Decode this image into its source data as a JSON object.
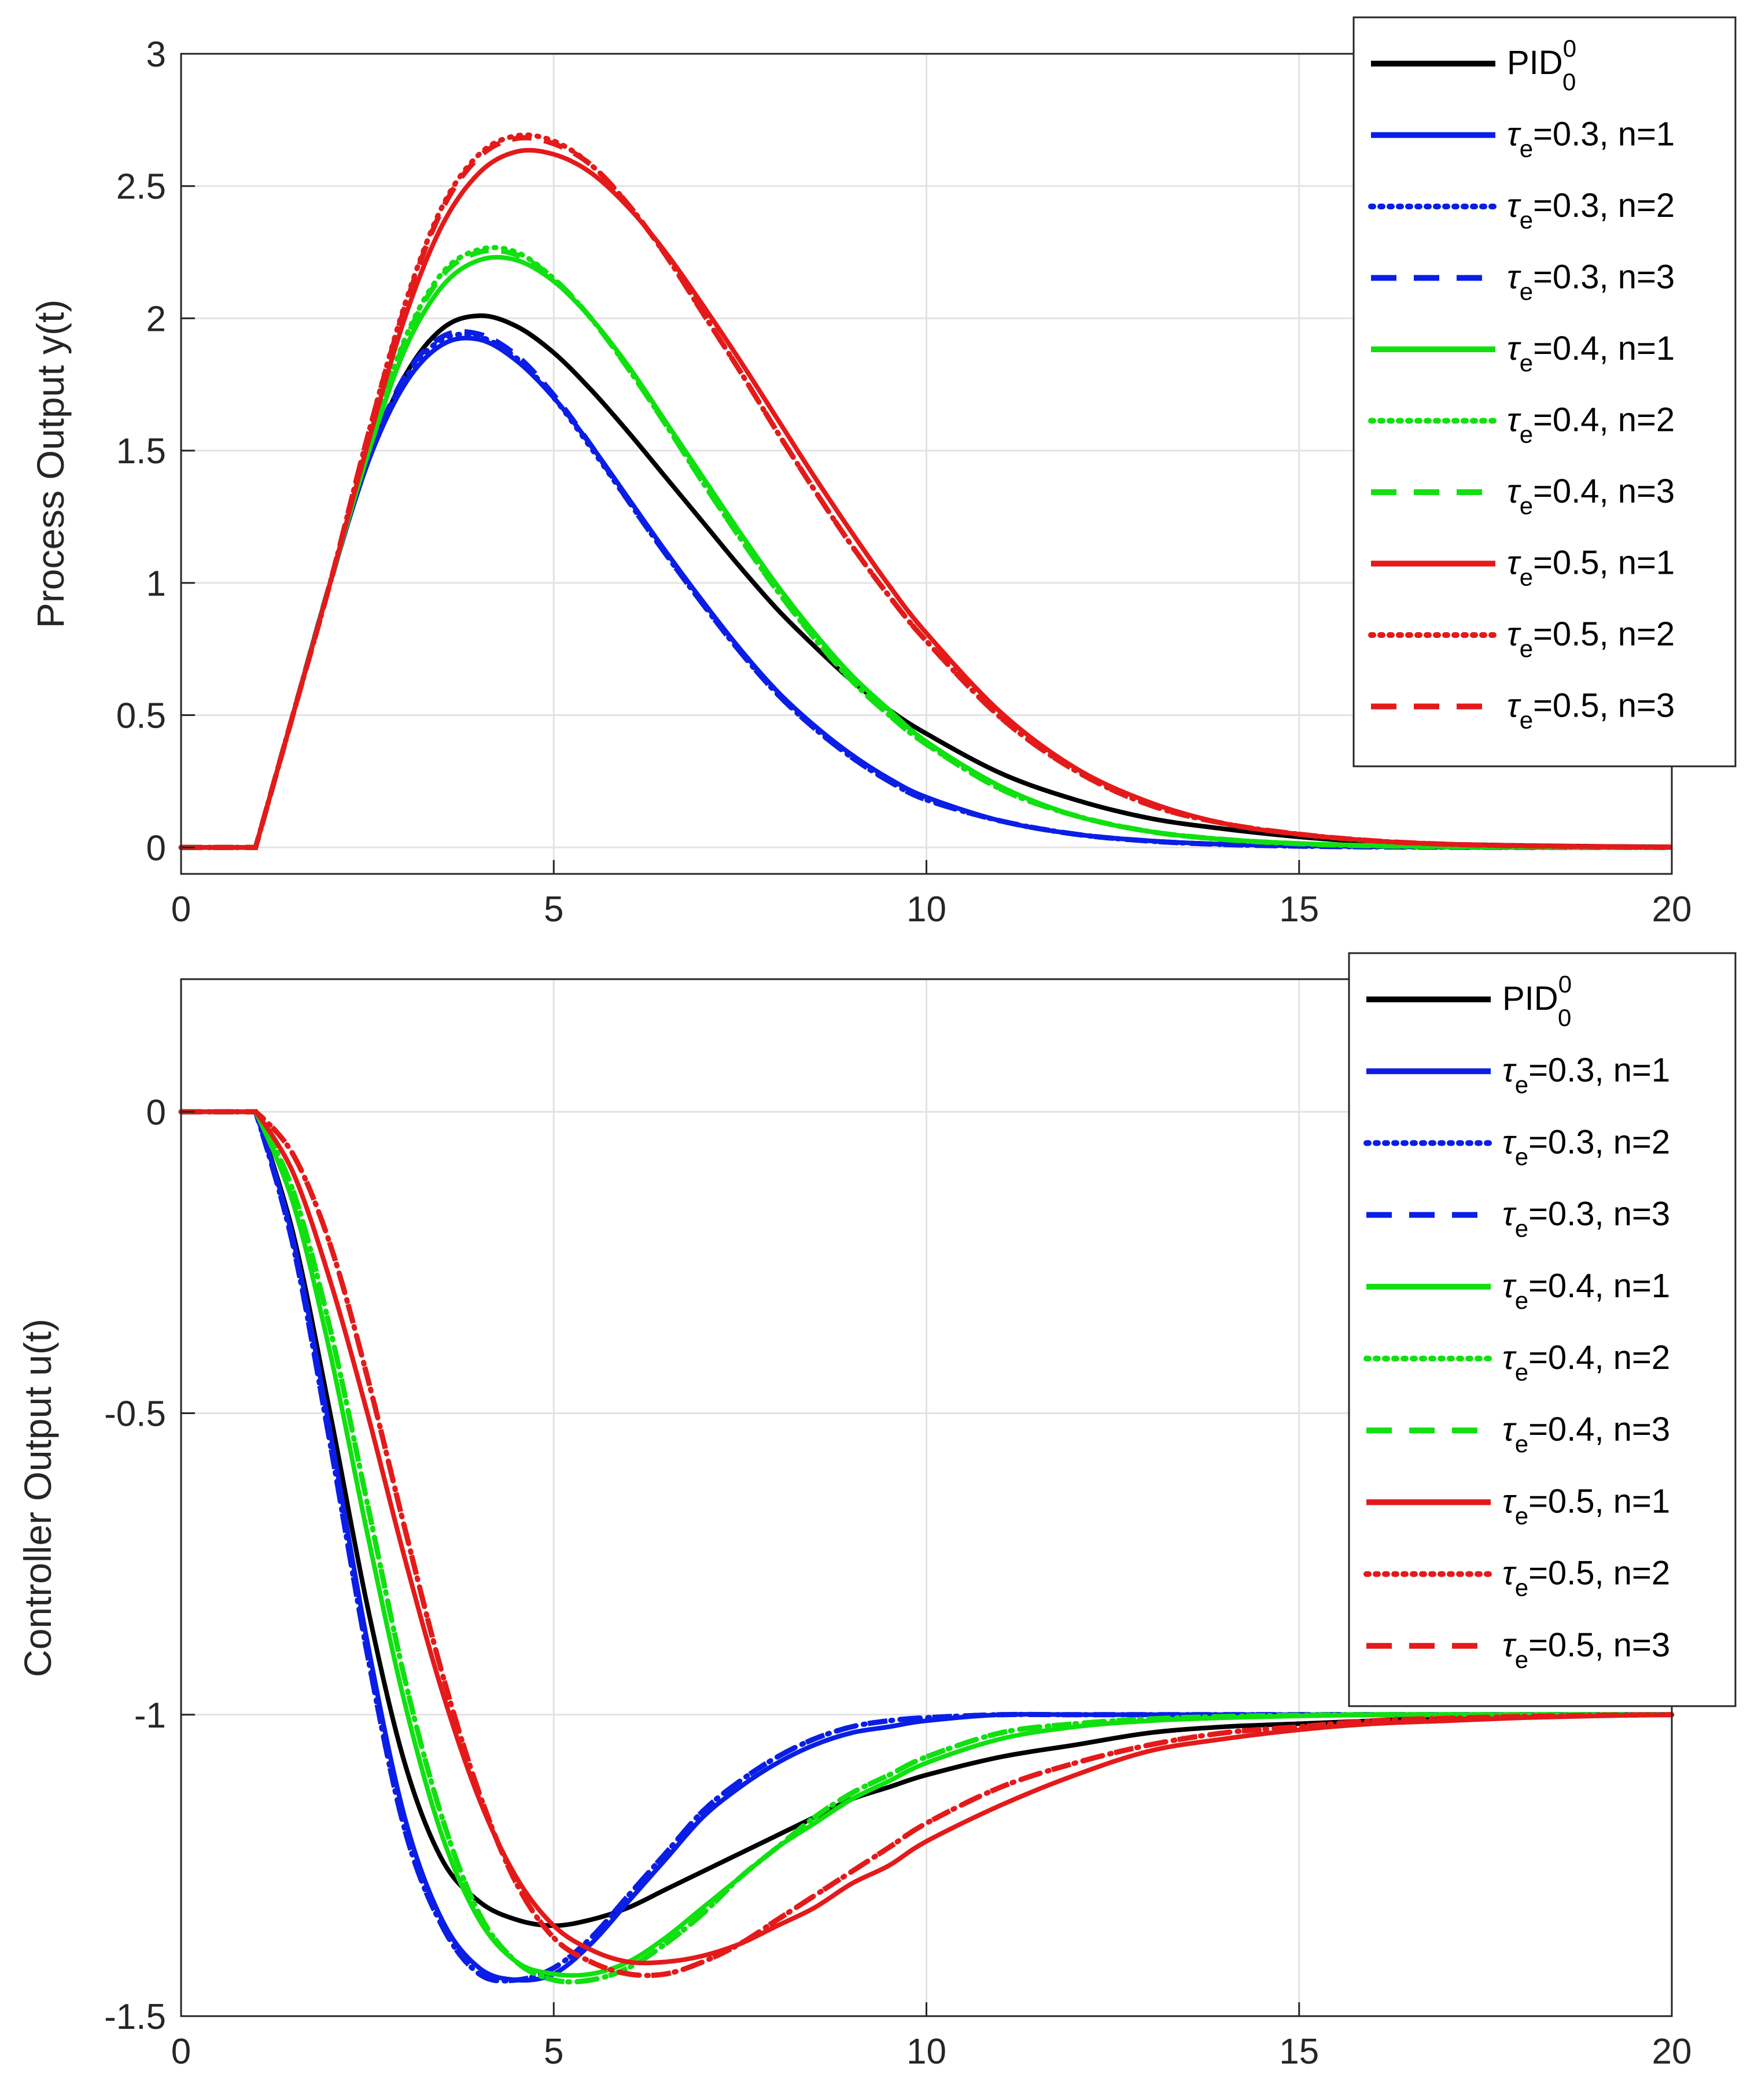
{
  "colors": {
    "pid": "#000000",
    "tau03": "#0a1ee6",
    "tau04": "#10e010",
    "tau05": "#e41a1a",
    "grid": "#e3e3e3",
    "axis": "#262626"
  },
  "legend": {
    "items": [
      {
        "main": "PID",
        "sup": "0",
        "sub": "0",
        "prefix": "",
        "suffix": "",
        "color": "#000000",
        "style": "solid"
      },
      {
        "main": "",
        "prefix": "τ",
        "sub": "e",
        "suffix": "=0.3, n=1",
        "color": "#0a1ee6",
        "style": "solid"
      },
      {
        "main": "",
        "prefix": "τ",
        "sub": "e",
        "suffix": "=0.3, n=2",
        "color": "#0a1ee6",
        "style": "dotted"
      },
      {
        "main": "",
        "prefix": "τ",
        "sub": "e",
        "suffix": "=0.3, n=3",
        "color": "#0a1ee6",
        "style": "dashed"
      },
      {
        "main": "",
        "prefix": "τ",
        "sub": "e",
        "suffix": "=0.4, n=1",
        "color": "#10e010",
        "style": "solid"
      },
      {
        "main": "",
        "prefix": "τ",
        "sub": "e",
        "suffix": "=0.4, n=2",
        "color": "#10e010",
        "style": "dotted"
      },
      {
        "main": "",
        "prefix": "τ",
        "sub": "e",
        "suffix": "=0.4, n=3",
        "color": "#10e010",
        "style": "dashed"
      },
      {
        "main": "",
        "prefix": "τ",
        "sub": "e",
        "suffix": "=0.5, n=1",
        "color": "#e41a1a",
        "style": "solid"
      },
      {
        "main": "",
        "prefix": "τ",
        "sub": "e",
        "suffix": "=0.5, n=2",
        "color": "#e41a1a",
        "style": "dotted"
      },
      {
        "main": "",
        "prefix": "τ",
        "sub": "e",
        "suffix": "=0.5, n=3",
        "color": "#e41a1a",
        "style": "dashed"
      }
    ]
  },
  "chart_data": [
    {
      "type": "line",
      "title": "",
      "xlabel": "",
      "ylabel": "Process Output y(t)",
      "xlim": [
        0,
        20
      ],
      "ylim": [
        -0.1,
        3
      ],
      "xticks": [
        0,
        5,
        10,
        15,
        20
      ],
      "xtick_labels": [
        "0",
        "5",
        "10",
        "15",
        "20"
      ],
      "yticks": [
        0,
        0.5,
        1,
        1.5,
        2,
        2.5,
        3
      ],
      "ytick_labels": [
        "0",
        "0.5",
        "1",
        "1.5",
        "2",
        "2.5",
        "3"
      ],
      "grid": true,
      "legend_position": "top-right",
      "x": [
        0,
        1,
        1.5,
        2,
        2.5,
        3,
        3.5,
        4,
        4.5,
        5,
        5.5,
        6,
        6.5,
        7,
        7.5,
        8,
        8.5,
        9,
        9.5,
        10,
        11,
        12,
        13,
        14,
        15,
        16,
        17,
        18,
        19,
        20
      ],
      "series": [
        {
          "name": "PID_0^0",
          "color": "#000000",
          "style": "solid",
          "values": [
            0,
            0,
            0.5,
            1.0,
            1.45,
            1.78,
            1.96,
            2.01,
            1.97,
            1.87,
            1.73,
            1.57,
            1.4,
            1.23,
            1.06,
            0.9,
            0.76,
            0.63,
            0.52,
            0.43,
            0.28,
            0.18,
            0.11,
            0.07,
            0.04,
            0.02,
            0.012,
            0.007,
            0.004,
            0.002
          ]
        },
        {
          "name": "τe=0.3, n=1",
          "color": "#0a1ee6",
          "style": "solid",
          "values": [
            0,
            0,
            0.5,
            1.0,
            1.45,
            1.75,
            1.9,
            1.92,
            1.84,
            1.7,
            1.52,
            1.32,
            1.12,
            0.93,
            0.75,
            0.59,
            0.46,
            0.35,
            0.26,
            0.19,
            0.1,
            0.05,
            0.025,
            0.012,
            0.006,
            0.003,
            0.001,
            0.0,
            0.0,
            0.0
          ]
        },
        {
          "name": "τe=0.3, n=2",
          "color": "#0a1ee6",
          "style": "dotted",
          "values": [
            0,
            0,
            0.5,
            1.0,
            1.46,
            1.77,
            1.92,
            1.93,
            1.85,
            1.7,
            1.51,
            1.31,
            1.11,
            0.92,
            0.74,
            0.58,
            0.45,
            0.34,
            0.25,
            0.18,
            0.1,
            0.05,
            0.024,
            0.011,
            0.005,
            0.002,
            0.001,
            0.0,
            0.0,
            0.0
          ]
        },
        {
          "name": "τe=0.3, n=3",
          "color": "#0a1ee6",
          "style": "dashed",
          "values": [
            0,
            0,
            0.5,
            1.0,
            1.46,
            1.78,
            1.93,
            1.94,
            1.86,
            1.71,
            1.52,
            1.31,
            1.11,
            0.92,
            0.74,
            0.58,
            0.45,
            0.34,
            0.25,
            0.18,
            0.1,
            0.05,
            0.024,
            0.011,
            0.005,
            0.002,
            0.001,
            0.0,
            0.0,
            0.0
          ]
        },
        {
          "name": "τe=0.4, n=1",
          "color": "#10e010",
          "style": "solid",
          "values": [
            0,
            0,
            0.5,
            1.0,
            1.48,
            1.88,
            2.12,
            2.22,
            2.22,
            2.14,
            2.0,
            1.82,
            1.61,
            1.4,
            1.19,
            0.99,
            0.81,
            0.65,
            0.52,
            0.4,
            0.23,
            0.12,
            0.06,
            0.03,
            0.015,
            0.007,
            0.003,
            0.001,
            0.0,
            0.0
          ]
        },
        {
          "name": "τe=0.4, n=2",
          "color": "#10e010",
          "style": "dotted",
          "values": [
            0,
            0,
            0.5,
            1.0,
            1.5,
            1.92,
            2.17,
            2.26,
            2.25,
            2.15,
            2.0,
            1.81,
            1.6,
            1.38,
            1.17,
            0.97,
            0.79,
            0.63,
            0.5,
            0.39,
            0.22,
            0.12,
            0.06,
            0.03,
            0.014,
            0.006,
            0.003,
            0.001,
            0.0,
            0.0
          ]
        },
        {
          "name": "τe=0.4, n=3",
          "color": "#10e010",
          "style": "dashed",
          "values": [
            0,
            0,
            0.5,
            1.0,
            1.5,
            1.91,
            2.16,
            2.25,
            2.24,
            2.15,
            2.0,
            1.81,
            1.6,
            1.38,
            1.17,
            0.97,
            0.79,
            0.63,
            0.5,
            0.39,
            0.22,
            0.12,
            0.06,
            0.03,
            0.014,
            0.006,
            0.003,
            0.001,
            0.0,
            0.0
          ]
        },
        {
          "name": "τe=0.5, n=1",
          "color": "#e41a1a",
          "style": "solid",
          "values": [
            0,
            0,
            0.5,
            1.0,
            1.52,
            2.0,
            2.35,
            2.55,
            2.63,
            2.62,
            2.55,
            2.42,
            2.25,
            2.05,
            1.84,
            1.62,
            1.4,
            1.19,
            0.99,
            0.81,
            0.51,
            0.3,
            0.17,
            0.09,
            0.05,
            0.025,
            0.012,
            0.006,
            0.003,
            0.001
          ]
        },
        {
          "name": "τe=0.5, n=2",
          "color": "#e41a1a",
          "style": "dotted",
          "values": [
            0,
            0,
            0.5,
            1.0,
            1.55,
            2.05,
            2.42,
            2.62,
            2.69,
            2.67,
            2.58,
            2.43,
            2.24,
            2.02,
            1.8,
            1.57,
            1.35,
            1.14,
            0.95,
            0.78,
            0.49,
            0.29,
            0.16,
            0.09,
            0.05,
            0.025,
            0.012,
            0.006,
            0.003,
            0.001
          ]
        },
        {
          "name": "τe=0.5, n=3",
          "color": "#e41a1a",
          "style": "dashed",
          "values": [
            0,
            0,
            0.5,
            1.0,
            1.55,
            2.04,
            2.41,
            2.61,
            2.68,
            2.66,
            2.58,
            2.43,
            2.24,
            2.02,
            1.8,
            1.57,
            1.35,
            1.14,
            0.95,
            0.78,
            0.49,
            0.29,
            0.16,
            0.09,
            0.05,
            0.025,
            0.012,
            0.006,
            0.003,
            0.001
          ]
        }
      ]
    },
    {
      "type": "line",
      "title": "",
      "xlabel": "",
      "ylabel": "Controller Output u(t)",
      "xlim": [
        0,
        20
      ],
      "ylim": [
        -1.5,
        0.22
      ],
      "xticks": [
        0,
        5,
        10,
        15,
        20
      ],
      "xtick_labels": [
        "0",
        "5",
        "10",
        "15",
        "20"
      ],
      "yticks": [
        -1.5,
        -1,
        -0.5,
        0
      ],
      "ytick_labels": [
        "-1.5",
        "-1",
        "-0.5",
        "0"
      ],
      "grid": true,
      "legend_position": "top-right",
      "x": [
        0,
        1,
        1.5,
        2,
        2.5,
        3,
        3.5,
        4,
        4.5,
        5,
        5.5,
        6,
        6.5,
        7,
        7.5,
        8,
        8.5,
        9,
        9.5,
        10,
        11,
        12,
        13,
        14,
        15,
        16,
        17,
        18,
        19,
        20
      ],
      "series": [
        {
          "name": "PID_0^0",
          "color": "#000000",
          "style": "solid",
          "values": [
            0,
            0,
            -0.2,
            -0.5,
            -0.82,
            -1.08,
            -1.24,
            -1.31,
            -1.34,
            -1.35,
            -1.34,
            -1.32,
            -1.29,
            -1.26,
            -1.23,
            -1.2,
            -1.17,
            -1.14,
            -1.12,
            -1.1,
            -1.07,
            -1.05,
            -1.03,
            -1.02,
            -1.015,
            -1.01,
            -1.005,
            -1.003,
            -1.001,
            -1.0
          ]
        },
        {
          "name": "τe=0.3, n=1",
          "color": "#0a1ee6",
          "style": "solid",
          "values": [
            0,
            0,
            -0.21,
            -0.53,
            -0.88,
            -1.17,
            -1.34,
            -1.42,
            -1.44,
            -1.43,
            -1.38,
            -1.31,
            -1.24,
            -1.17,
            -1.12,
            -1.08,
            -1.05,
            -1.03,
            -1.02,
            -1.01,
            -1.0,
            -1.0,
            -1.0,
            -1.0,
            -1.0,
            -1.0,
            -1.0,
            -1.0,
            -1.0,
            -1.0
          ]
        },
        {
          "name": "τe=0.3, n=2",
          "color": "#0a1ee6",
          "style": "dotted",
          "values": [
            0,
            0,
            -0.22,
            -0.55,
            -0.9,
            -1.19,
            -1.35,
            -1.43,
            -1.44,
            -1.42,
            -1.37,
            -1.3,
            -1.23,
            -1.16,
            -1.11,
            -1.07,
            -1.04,
            -1.02,
            -1.01,
            -1.005,
            -1.0,
            -1.0,
            -1.0,
            -1.0,
            -1.0,
            -1.0,
            -1.0,
            -1.0,
            -1.0,
            -1.0
          ]
        },
        {
          "name": "τe=0.3, n=3",
          "color": "#0a1ee6",
          "style": "dashed",
          "values": [
            0,
            0,
            -0.22,
            -0.55,
            -0.9,
            -1.19,
            -1.35,
            -1.43,
            -1.44,
            -1.42,
            -1.37,
            -1.3,
            -1.23,
            -1.16,
            -1.11,
            -1.07,
            -1.04,
            -1.02,
            -1.01,
            -1.005,
            -1.0,
            -1.0,
            -1.0,
            -1.0,
            -1.0,
            -1.0,
            -1.0,
            -1.0,
            -1.0,
            -1.0
          ]
        },
        {
          "name": "τe=0.4, n=1",
          "color": "#10e010",
          "style": "solid",
          "values": [
            0,
            0,
            -0.15,
            -0.4,
            -0.7,
            -0.98,
            -1.2,
            -1.34,
            -1.41,
            -1.43,
            -1.43,
            -1.41,
            -1.37,
            -1.32,
            -1.27,
            -1.22,
            -1.18,
            -1.14,
            -1.11,
            -1.08,
            -1.04,
            -1.02,
            -1.01,
            -1.005,
            -1.002,
            -1.0,
            -1.0,
            -1.0,
            -1.0,
            -1.0
          ]
        },
        {
          "name": "τe=0.4, n=2",
          "color": "#10e010",
          "style": "dotted",
          "values": [
            0,
            0,
            -0.13,
            -0.36,
            -0.65,
            -0.94,
            -1.17,
            -1.33,
            -1.41,
            -1.44,
            -1.44,
            -1.42,
            -1.38,
            -1.33,
            -1.27,
            -1.22,
            -1.17,
            -1.13,
            -1.1,
            -1.07,
            -1.03,
            -1.015,
            -1.007,
            -1.003,
            -1.001,
            -1.0,
            -1.0,
            -1.0,
            -1.0,
            -1.0
          ]
        },
        {
          "name": "τe=0.4, n=3",
          "color": "#10e010",
          "style": "dashed",
          "values": [
            0,
            0,
            -0.13,
            -0.36,
            -0.65,
            -0.94,
            -1.17,
            -1.33,
            -1.41,
            -1.44,
            -1.44,
            -1.42,
            -1.38,
            -1.33,
            -1.27,
            -1.22,
            -1.17,
            -1.13,
            -1.1,
            -1.07,
            -1.03,
            -1.015,
            -1.007,
            -1.003,
            -1.001,
            -1.0,
            -1.0,
            -1.0,
            -1.0,
            -1.0
          ]
        },
        {
          "name": "τe=0.5, n=1",
          "color": "#e41a1a",
          "style": "solid",
          "values": [
            0,
            0,
            -0.1,
            -0.28,
            -0.5,
            -0.74,
            -0.96,
            -1.14,
            -1.27,
            -1.35,
            -1.39,
            -1.41,
            -1.41,
            -1.4,
            -1.38,
            -1.35,
            -1.32,
            -1.28,
            -1.25,
            -1.21,
            -1.15,
            -1.1,
            -1.06,
            -1.04,
            -1.025,
            -1.015,
            -1.01,
            -1.005,
            -1.002,
            -1.0
          ]
        },
        {
          "name": "τe=0.5, n=2",
          "color": "#e41a1a",
          "style": "dotted",
          "values": [
            0,
            0,
            -0.07,
            -0.22,
            -0.44,
            -0.69,
            -0.93,
            -1.13,
            -1.28,
            -1.37,
            -1.41,
            -1.43,
            -1.43,
            -1.41,
            -1.38,
            -1.34,
            -1.3,
            -1.26,
            -1.22,
            -1.18,
            -1.12,
            -1.08,
            -1.05,
            -1.03,
            -1.02,
            -1.01,
            -1.006,
            -1.003,
            -1.001,
            -1.0
          ]
        },
        {
          "name": "τe=0.5, n=3",
          "color": "#e41a1a",
          "style": "dashed",
          "values": [
            0,
            0,
            -0.07,
            -0.22,
            -0.44,
            -0.69,
            -0.93,
            -1.13,
            -1.28,
            -1.37,
            -1.41,
            -1.43,
            -1.43,
            -1.41,
            -1.38,
            -1.34,
            -1.3,
            -1.26,
            -1.22,
            -1.18,
            -1.12,
            -1.08,
            -1.05,
            -1.03,
            -1.02,
            -1.01,
            -1.006,
            -1.003,
            -1.001,
            -1.0
          ]
        }
      ]
    }
  ]
}
